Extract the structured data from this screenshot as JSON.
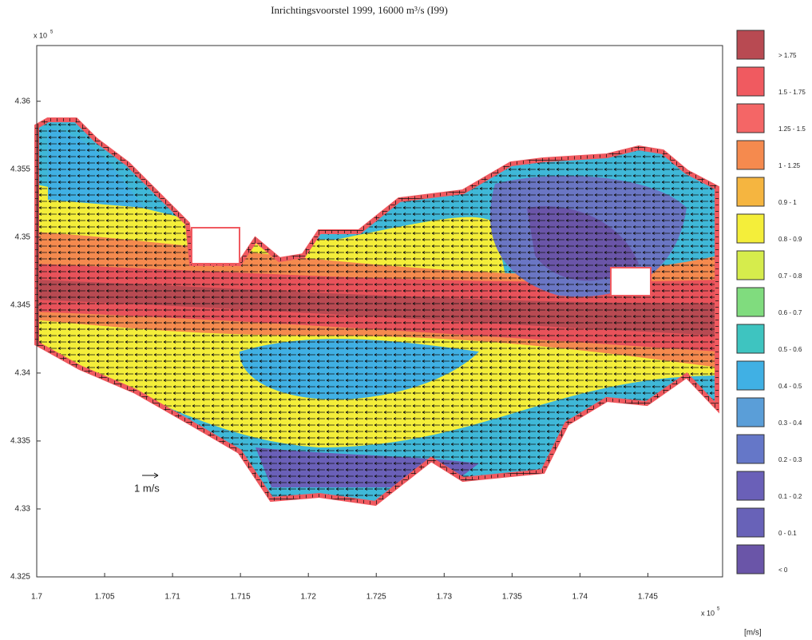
{
  "chart_data": {
    "type": "velocity_map",
    "title": "Inrichtingsvoorstel 1999, 16000 m³/s (I99)",
    "xlim": [
      1.7,
      1.7505
    ],
    "ylim": [
      4.325,
      4.3641
    ],
    "xticks": [
      1.7,
      1.705,
      1.71,
      1.715,
      1.72,
      1.725,
      1.73,
      1.735,
      1.74,
      1.745
    ],
    "yticks": [
      4.325,
      4.33,
      4.335,
      4.34,
      4.345,
      4.35,
      4.355,
      4.36
    ],
    "axis_multiplier": {
      "base": "x 10",
      "exponent": "5"
    },
    "scale_arrow_label": "1 m/s",
    "legend_unit": "[m/s]",
    "legend": [
      {
        "label": "> 1.75",
        "color": "#b84a52"
      },
      {
        "label": "1.5 - 1.75",
        "color": "#f05a60"
      },
      {
        "label": "1.25 - 1.5",
        "color": "#f46666"
      },
      {
        "label": "1 - 1.25",
        "color": "#f58a4e"
      },
      {
        "label": "0.9 - 1",
        "color": "#f5b540"
      },
      {
        "label": "0.8 - 0.9",
        "color": "#f4ee3a"
      },
      {
        "label": "0.7 - 0.8",
        "color": "#d6ec4c"
      },
      {
        "label": "0.6 - 0.7",
        "color": "#80dc7e"
      },
      {
        "label": "0.5 - 0.6",
        "color": "#3ec4c0"
      },
      {
        "label": "0.4 - 0.5",
        "color": "#40b0e4"
      },
      {
        "label": "0.3 - 0.4",
        "color": "#5a9ed8"
      },
      {
        "label": "0.2 - 0.3",
        "color": "#6577c8"
      },
      {
        "label": "0.1 - 0.2",
        "color": "#6a60b8"
      },
      {
        "label": "0 - 0.1",
        "color": "#6862b8"
      },
      {
        "label": "< 0",
        "color": "#6a55a8"
      }
    ]
  }
}
